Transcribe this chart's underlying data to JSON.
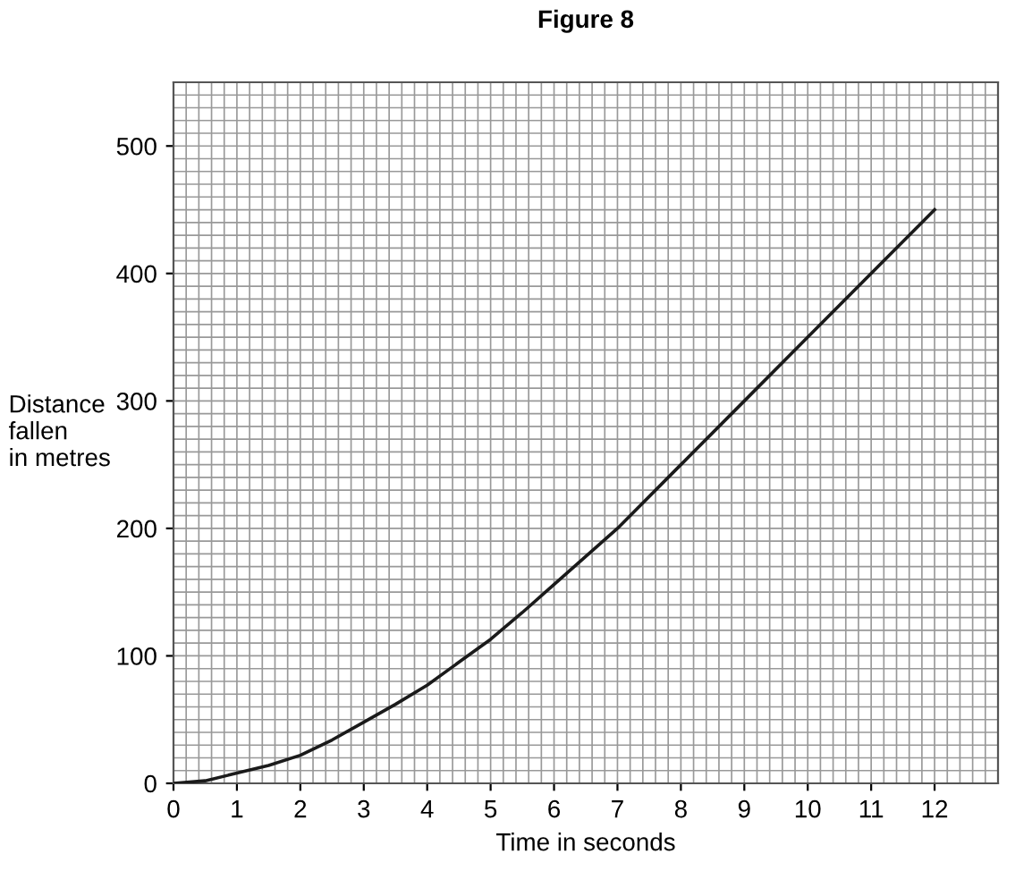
{
  "chart_data": {
    "type": "line",
    "title": "Figure 8",
    "xlabel": "Time in seconds",
    "ylabel": "Distance\nfallen\nin metres",
    "x": [
      0,
      0.5,
      1,
      1.5,
      2,
      2.5,
      3,
      3.5,
      4,
      4.5,
      5,
      5.5,
      6,
      7,
      8,
      9,
      10,
      11,
      12
    ],
    "series": [
      {
        "color": "#1a1a1a",
        "values": [
          0,
          2,
          8,
          14,
          22,
          34,
          48,
          62,
          77,
          95,
          113,
          134,
          156,
          200,
          250,
          300,
          350,
          400,
          450
        ]
      }
    ],
    "xlim": [
      0,
      13
    ],
    "ylim": [
      0,
      550
    ],
    "xticks": [
      0,
      1,
      2,
      3,
      4,
      5,
      6,
      7,
      8,
      9,
      10,
      11,
      12
    ],
    "yticks": [
      0,
      100,
      200,
      300,
      400,
      500
    ],
    "grid": true,
    "marker": "none",
    "line_style": "solid",
    "legend": false
  }
}
